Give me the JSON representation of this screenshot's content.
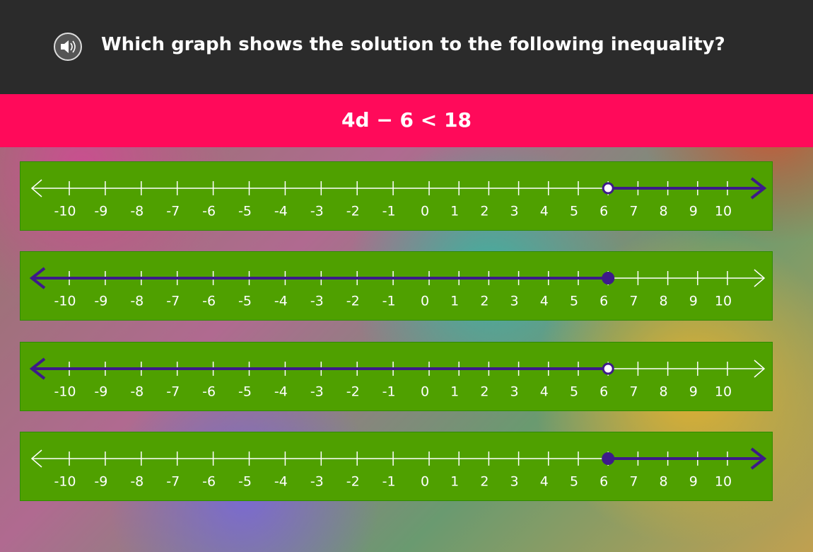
{
  "header": {
    "question": "Which graph shows the solution to the following inequality?"
  },
  "equation": "4d − 6 < 18",
  "ticks": [
    -10,
    -9,
    -8,
    -7,
    -6,
    -5,
    -4,
    -3,
    -2,
    -1,
    0,
    1,
    2,
    3,
    4,
    5,
    6,
    7,
    8,
    9,
    10
  ],
  "options": [
    {
      "point": 6,
      "closed": false,
      "direction": "right"
    },
    {
      "point": 6,
      "closed": true,
      "direction": "left"
    },
    {
      "point": 6,
      "closed": false,
      "direction": "left"
    },
    {
      "point": 6,
      "closed": true,
      "direction": "right"
    }
  ]
}
